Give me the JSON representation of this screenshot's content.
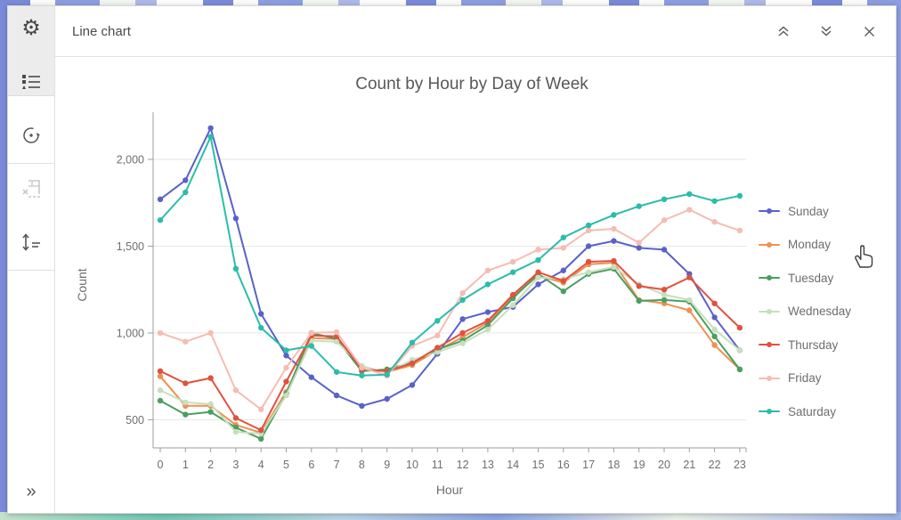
{
  "header": {
    "title": "Line chart",
    "buttons": [
      {
        "icon": "collapse-up-icon"
      },
      {
        "icon": "expand-down-icon"
      },
      {
        "icon": "close-icon"
      }
    ]
  },
  "toolbar": {
    "items": [
      {
        "icon": "gear-icon"
      },
      {
        "icon": "legend-list-icon",
        "active": true
      },
      {
        "icon": "history-icon"
      },
      {
        "icon": "export-table-icon",
        "disabled": true
      },
      {
        "icon": "sort-icon"
      },
      {
        "icon": "expand-panel-icon",
        "glyph": "»"
      }
    ]
  },
  "chart_data": {
    "type": "line",
    "title": "Count by Hour by Day of Week",
    "xlabel": "Hour",
    "ylabel": "Count",
    "x": [
      0,
      1,
      2,
      3,
      4,
      5,
      6,
      7,
      8,
      9,
      10,
      11,
      12,
      13,
      14,
      15,
      16,
      17,
      18,
      19,
      20,
      21,
      22,
      23
    ],
    "yticks": [
      500,
      1000,
      1500,
      2000
    ],
    "ylim": [
      340,
      2280
    ],
    "grid": true,
    "legend_position": "right",
    "marker": "circle",
    "series": [
      {
        "name": "Sunday",
        "color": "#5a61c9",
        "values": [
          1770,
          1880,
          2180,
          1660,
          1110,
          870,
          745,
          640,
          580,
          620,
          700,
          880,
          1080,
          1120,
          1150,
          1280,
          1360,
          1500,
          1530,
          1490,
          1480,
          1340,
          1090,
          900
        ]
      },
      {
        "name": "Monday",
        "color": "#ee9150",
        "values": [
          750,
          580,
          580,
          470,
          425,
          660,
          970,
          965,
          790,
          775,
          815,
          900,
          975,
          1060,
          1210,
          1330,
          1290,
          1395,
          1405,
          1190,
          1170,
          1130,
          930,
          790
        ]
      },
      {
        "name": "Tuesday",
        "color": "#4a9e61",
        "values": [
          610,
          530,
          545,
          455,
          390,
          650,
          1000,
          965,
          780,
          790,
          830,
          905,
          955,
          1045,
          1200,
          1340,
          1240,
          1340,
          1370,
          1185,
          1190,
          1180,
          980,
          790
        ]
      },
      {
        "name": "Wednesday",
        "color": "#c6dfbc",
        "values": [
          670,
          600,
          590,
          430,
          420,
          640,
          955,
          950,
          810,
          770,
          845,
          890,
          940,
          1020,
          1160,
          1320,
          1310,
          1350,
          1380,
          1280,
          1220,
          1190,
          1020,
          900
        ]
      },
      {
        "name": "Thursday",
        "color": "#e1513f",
        "values": [
          780,
          710,
          740,
          510,
          440,
          720,
          985,
          980,
          790,
          780,
          825,
          915,
          1000,
          1070,
          1220,
          1350,
          1300,
          1410,
          1415,
          1270,
          1250,
          1320,
          1170,
          1030
        ]
      },
      {
        "name": "Friday",
        "color": "#f5bcb4",
        "values": [
          1000,
          950,
          1000,
          670,
          560,
          800,
          1000,
          1005,
          800,
          755,
          925,
          985,
          1230,
          1360,
          1410,
          1480,
          1490,
          1590,
          1600,
          1520,
          1650,
          1710,
          1640,
          1590
        ]
      },
      {
        "name": "Saturday",
        "color": "#2abda9",
        "values": [
          1650,
          1810,
          2130,
          1370,
          1030,
          900,
          925,
          775,
          755,
          760,
          945,
          1070,
          1190,
          1280,
          1350,
          1420,
          1550,
          1620,
          1680,
          1730,
          1770,
          1800,
          1760,
          1790
        ]
      }
    ]
  }
}
